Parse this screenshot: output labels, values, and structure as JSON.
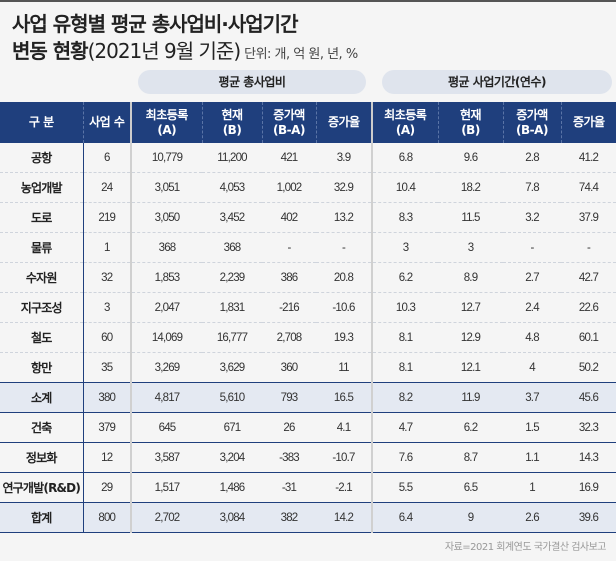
{
  "title": {
    "line1": "사업 유형별 평균 총사업비·사업기간",
    "line2_bold": "변동 현황",
    "line2_rest": "(2021년 9월 기준)",
    "unit": "단위: 개, 억 원, 년, %"
  },
  "groups": {
    "cost": "평균 총사업비",
    "period": "평균 사업기간(연수)"
  },
  "headers": [
    "구 분",
    "사업 수",
    "최초등록\n(A)",
    "현재\n(B)",
    "증가액\n(B-A)",
    "증가율",
    "최초등록\n(A)",
    "현재\n(B)",
    "증가액\n(B-A)",
    "증가율"
  ],
  "rows": [
    [
      "공항",
      "6",
      "10,779",
      "11,200",
      "421",
      "3.9",
      "6.8",
      "9.6",
      "2.8",
      "41.2"
    ],
    [
      "농업개발",
      "24",
      "3,051",
      "4,053",
      "1,002",
      "32.9",
      "10.4",
      "18.2",
      "7.8",
      "74.4"
    ],
    [
      "도로",
      "219",
      "3,050",
      "3,452",
      "402",
      "13.2",
      "8.3",
      "11.5",
      "3.2",
      "37.9"
    ],
    [
      "물류",
      "1",
      "368",
      "368",
      "-",
      "-",
      "3",
      "3",
      "-",
      "-"
    ],
    [
      "수자원",
      "32",
      "1,853",
      "2,239",
      "386",
      "20.8",
      "6.2",
      "8.9",
      "2.7",
      "42.7"
    ],
    [
      "지구조성",
      "3",
      "2,047",
      "1,831",
      "-216",
      "-10.6",
      "10.3",
      "12.7",
      "2.4",
      "22.6"
    ],
    [
      "철도",
      "60",
      "14,069",
      "16,777",
      "2,708",
      "19.3",
      "8.1",
      "12.9",
      "4.8",
      "60.1"
    ],
    [
      "항만",
      "35",
      "3,269",
      "3,629",
      "360",
      "11",
      "8.1",
      "12.1",
      "4",
      "50.2"
    ],
    [
      "소계",
      "380",
      "4,817",
      "5,610",
      "793",
      "16.5",
      "8.2",
      "11.9",
      "3.7",
      "45.6"
    ],
    [
      "건축",
      "379",
      "645",
      "671",
      "26",
      "4.1",
      "4.7",
      "6.2",
      "1.5",
      "32.3"
    ],
    [
      "정보화",
      "12",
      "3,587",
      "3,204",
      "-383",
      "-10.7",
      "7.6",
      "8.7",
      "1.1",
      "14.3"
    ],
    [
      "연구개발(R&D)",
      "29",
      "1,517",
      "1,486",
      "-31",
      "-2.1",
      "5.5",
      "6.5",
      "1",
      "16.9"
    ],
    [
      "합계",
      "800",
      "2,702",
      "3,084",
      "382",
      "14.2",
      "6.4",
      "9",
      "2.6",
      "39.6"
    ]
  ],
  "subtotal_rows": [
    "소계",
    "합계"
  ],
  "source": "자료=2021 회계연도 국가결산 검사보고",
  "colors": {
    "header": "#1f3f7d",
    "subtotal": "#e4e9f2",
    "pill": "#dfe4ed",
    "background": "#f5f5f5"
  }
}
